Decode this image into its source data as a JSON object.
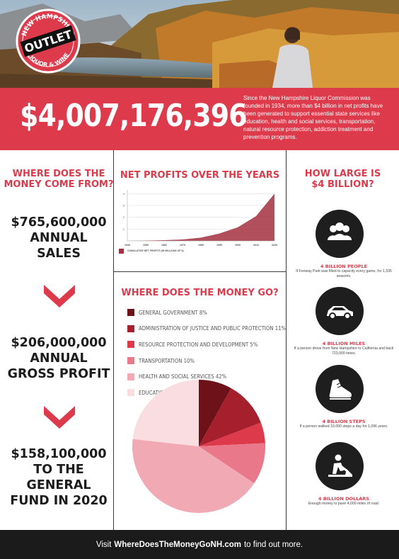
{
  "logo": {
    "top_text": "NEW HAMPSHIRE",
    "center_text": "OUTLET",
    "bottom_text": "LIQUOR & WINE"
  },
  "banner": {
    "total": "$4,007,176,396",
    "description": "Since the New Hampshire Liquor Commission was founded in 1934, more than $4 billion in net profits have been generated to support essential state services like education, health and social services, transportation, natural resource protection, addiction treatment and prevention programs."
  },
  "left": {
    "heading_line1": "WHERE DOES THE",
    "heading_line2": "MONEY COME FROM?",
    "stats": [
      {
        "lines": [
          "$765,600,000",
          "ANNUAL",
          "SALES"
        ]
      },
      {
        "lines": [
          "$206,000,000",
          "ANNUAL",
          "GROSS PROFIT"
        ]
      },
      {
        "lines": [
          "$158,100,000",
          "TO THE",
          "GENERAL",
          "FUND IN 2020"
        ]
      }
    ]
  },
  "middle": {
    "chart_heading": "NET PROFITS OVER THE YEARS",
    "money_go_heading": "WHERE DOES THE MONEY GO?"
  },
  "chart_data": [
    {
      "type": "area",
      "title": "NET PROFITS OVER THE YEARS",
      "x": [
        1940,
        1950,
        1960,
        1970,
        1980,
        1990,
        2000,
        2010,
        2020
      ],
      "series": [
        {
          "name": "CUMULATIVE NET PROFITS (IN BILLIONS OF $)",
          "values": [
            0.0,
            0.02,
            0.06,
            0.12,
            0.28,
            0.62,
            1.15,
            2.1,
            4.0
          ]
        }
      ],
      "yticks": [
        1,
        2,
        3,
        4
      ],
      "ylim": [
        0,
        4.2
      ],
      "xlim": [
        1940,
        2020
      ],
      "color": "#a3303f",
      "grid": true
    },
    {
      "type": "pie",
      "title": "WHERE DOES THE MONEY GO?",
      "slices": [
        {
          "label": "GENERAL GOVERNMENT",
          "value": 8,
          "pct_label": "8%",
          "color": "#6d1218"
        },
        {
          "label": "ADMINISTRATION OF JUSTICE AND PUBLIC PROTECTION",
          "value": 11,
          "pct_label": "11%",
          "color": "#a61f2d"
        },
        {
          "label": "RESOURCE PROTECTION AND DEVELOPMENT",
          "value": 5,
          "pct_label": "5%",
          "color": "#dd3a4c"
        },
        {
          "label": "TRANSPORTATION",
          "value": 10,
          "pct_label": "10%",
          "color": "#e8788a"
        },
        {
          "label": "HEALTH AND SOCIAL SERVICES",
          "value": 42,
          "pct_label": "42%",
          "color": "#f1a9b4"
        },
        {
          "label": "EDUCATION",
          "value": 23,
          "pct_label": "23%",
          "color": "#f9dde1"
        }
      ]
    }
  ],
  "right": {
    "heading_line1": "HOW LARGE IS",
    "heading_line2": "$4 BILLION?",
    "facts": [
      {
        "icon": "people-icon",
        "title": "4 BILLION PEOPLE",
        "text": "If Fenway Park was filled to capacity every game, for 1,335 seasons."
      },
      {
        "icon": "car-icon",
        "title": "4 BILLION MILES",
        "text": "If a person drove from New Hampshire to California and back 723,000 times."
      },
      {
        "icon": "sneaker-icon",
        "title": "4 BILLION STEPS",
        "text": "If a person walked 10,000 steps a day for 1,096 years."
      },
      {
        "icon": "road-worker-icon",
        "title": "4 BILLION DOLLARS",
        "text": "Enough money to pave 4,000 miles of road."
      }
    ]
  },
  "footer": {
    "pre": "Visit",
    "link": "WhereDoesTheMoneyGoNH.com",
    "post": "to find out more."
  },
  "colors": {
    "brand_red": "#dd3a4c",
    "dark": "#1b1b1b"
  }
}
